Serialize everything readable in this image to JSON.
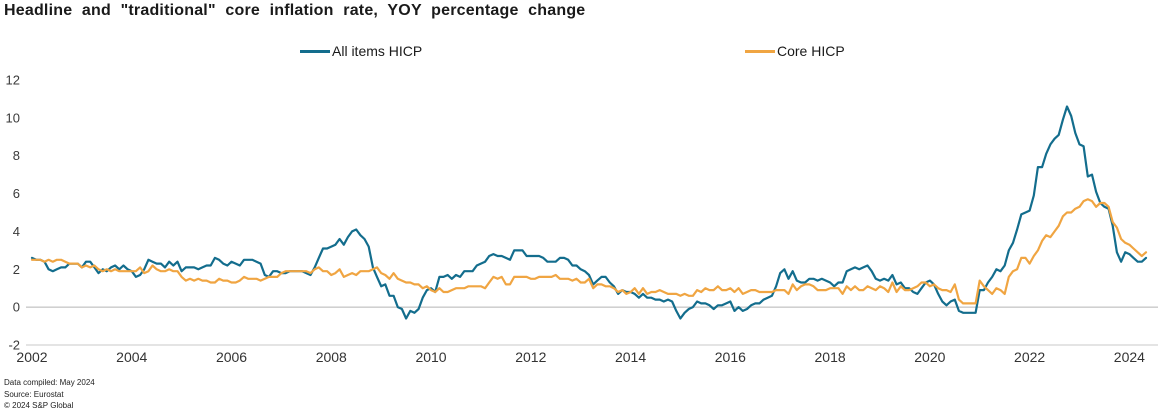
{
  "chart_data": {
    "type": "line",
    "title": "Headline and \"traditional\" core inflation rate, YOY percentage change",
    "x_start": 2002,
    "x_interval": "monthly",
    "x_end_label": "May 2024",
    "x_ticks": [
      2002,
      2004,
      2006,
      2008,
      2010,
      2012,
      2014,
      2016,
      2018,
      2020,
      2022,
      2024
    ],
    "y_ticks": [
      -2,
      0,
      2,
      4,
      6,
      8,
      10,
      12
    ],
    "ylim": [
      -2,
      12
    ],
    "grid": "zero-line-and-baseline-only",
    "legend_position": "top",
    "series": [
      {
        "name": "All items HICP",
        "color": "#136d8d",
        "values": [
          2.6,
          2.5,
          2.5,
          2.4,
          2.0,
          1.9,
          2.0,
          2.1,
          2.1,
          2.3,
          2.3,
          2.3,
          2.1,
          2.4,
          2.4,
          2.1,
          1.8,
          2.0,
          1.9,
          2.1,
          2.2,
          2.0,
          2.2,
          2.0,
          1.9,
          1.6,
          1.7,
          2.0,
          2.5,
          2.4,
          2.3,
          2.3,
          2.1,
          2.4,
          2.2,
          2.4,
          1.9,
          2.1,
          2.1,
          2.1,
          2.0,
          2.1,
          2.2,
          2.2,
          2.6,
          2.5,
          2.3,
          2.2,
          2.4,
          2.3,
          2.2,
          2.5,
          2.5,
          2.5,
          2.4,
          2.3,
          1.7,
          1.6,
          1.9,
          1.9,
          1.8,
          1.8,
          1.9,
          1.9,
          1.9,
          1.9,
          1.8,
          1.7,
          2.1,
          2.6,
          3.1,
          3.1,
          3.2,
          3.3,
          3.6,
          3.3,
          3.7,
          4.0,
          4.1,
          3.8,
          3.6,
          3.2,
          2.1,
          1.6,
          1.1,
          1.2,
          0.6,
          0.6,
          0.0,
          -0.1,
          -0.6,
          -0.2,
          -0.3,
          -0.1,
          0.5,
          0.9,
          1.0,
          0.8,
          1.6,
          1.6,
          1.7,
          1.5,
          1.7,
          1.6,
          1.9,
          1.9,
          1.9,
          2.2,
          2.3,
          2.4,
          2.7,
          2.8,
          2.7,
          2.7,
          2.6,
          2.5,
          3.0,
          3.0,
          3.0,
          2.7,
          2.7,
          2.7,
          2.7,
          2.6,
          2.4,
          2.4,
          2.4,
          2.6,
          2.6,
          2.5,
          2.2,
          2.2,
          2.0,
          1.9,
          1.7,
          1.2,
          1.4,
          1.6,
          1.6,
          1.3,
          1.1,
          0.7,
          0.9,
          0.8,
          0.8,
          0.7,
          0.5,
          0.7,
          0.5,
          0.5,
          0.4,
          0.4,
          0.3,
          0.4,
          0.3,
          -0.2,
          -0.6,
          -0.3,
          -0.1,
          0.0,
          0.3,
          0.2,
          0.2,
          0.1,
          -0.1,
          0.1,
          0.1,
          0.2,
          0.3,
          -0.2,
          0.0,
          -0.2,
          -0.1,
          0.1,
          0.2,
          0.2,
          0.4,
          0.5,
          0.6,
          1.1,
          1.8,
          2.0,
          1.5,
          1.9,
          1.4,
          1.3,
          1.3,
          1.5,
          1.5,
          1.4,
          1.5,
          1.4,
          1.3,
          1.1,
          1.3,
          1.3,
          1.9,
          2.0,
          2.1,
          2.0,
          2.1,
          2.2,
          1.9,
          1.5,
          1.4,
          1.5,
          1.4,
          1.7,
          1.2,
          1.3,
          1.0,
          1.0,
          0.8,
          0.7,
          1.0,
          1.3,
          1.4,
          1.2,
          0.7,
          0.3,
          0.1,
          0.3,
          0.4,
          -0.2,
          -0.3,
          -0.3,
          -0.3,
          -0.3,
          0.9,
          0.9,
          1.3,
          1.6,
          2.0,
          1.9,
          2.2,
          3.0,
          3.4,
          4.1,
          4.9,
          5.0,
          5.1,
          5.9,
          7.4,
          7.4,
          8.1,
          8.6,
          8.9,
          9.1,
          9.9,
          10.6,
          10.1,
          9.2,
          8.6,
          8.5,
          6.9,
          7.0,
          6.1,
          5.5,
          5.3,
          5.2,
          4.3,
          2.9,
          2.4,
          2.9,
          2.8,
          2.6,
          2.4,
          2.4,
          2.6
        ]
      },
      {
        "name": "Core HICP",
        "color": "#f0a542",
        "values": [
          2.5,
          2.5,
          2.5,
          2.4,
          2.5,
          2.4,
          2.5,
          2.5,
          2.4,
          2.3,
          2.3,
          2.3,
          2.1,
          2.2,
          2.1,
          2.2,
          2.0,
          1.9,
          2.0,
          1.9,
          2.0,
          1.9,
          1.9,
          1.9,
          1.9,
          1.9,
          2.1,
          1.8,
          1.9,
          2.2,
          2.0,
          1.9,
          1.9,
          2.0,
          1.9,
          1.9,
          1.6,
          1.4,
          1.5,
          1.4,
          1.5,
          1.4,
          1.4,
          1.3,
          1.3,
          1.5,
          1.4,
          1.4,
          1.3,
          1.3,
          1.4,
          1.6,
          1.5,
          1.5,
          1.5,
          1.4,
          1.5,
          1.6,
          1.6,
          1.6,
          1.8,
          1.9,
          1.9,
          1.9,
          1.9,
          1.9,
          1.9,
          1.8,
          2.0,
          2.1,
          1.9,
          1.9,
          1.7,
          1.8,
          2.0,
          1.6,
          1.7,
          1.8,
          1.7,
          1.9,
          1.9,
          1.9,
          2.0,
          2.1,
          1.8,
          1.7,
          1.5,
          1.8,
          1.5,
          1.4,
          1.3,
          1.3,
          1.2,
          1.2,
          1.0,
          1.1,
          0.9,
          0.8,
          1.0,
          0.8,
          0.8,
          0.9,
          1.0,
          1.0,
          1.0,
          1.1,
          1.1,
          1.1,
          1.1,
          1.0,
          1.3,
          1.6,
          1.5,
          1.6,
          1.2,
          1.2,
          1.6,
          1.6,
          1.6,
          1.6,
          1.5,
          1.5,
          1.6,
          1.6,
          1.6,
          1.6,
          1.7,
          1.5,
          1.5,
          1.5,
          1.4,
          1.5,
          1.3,
          1.3,
          1.5,
          1.0,
          1.2,
          1.2,
          1.1,
          1.1,
          1.0,
          0.8,
          0.9,
          0.7,
          0.8,
          1.0,
          0.7,
          1.0,
          0.7,
          0.8,
          0.8,
          0.9,
          0.8,
          0.7,
          0.7,
          0.7,
          0.6,
          0.7,
          0.6,
          0.6,
          0.9,
          0.8,
          1.0,
          0.9,
          0.9,
          1.1,
          0.9,
          0.9,
          1.0,
          0.8,
          1.0,
          0.7,
          0.8,
          0.9,
          0.9,
          0.8,
          0.8,
          0.8,
          0.8,
          0.9,
          0.9,
          0.9,
          0.7,
          1.2,
          0.9,
          1.1,
          1.2,
          1.2,
          1.1,
          0.9,
          0.9,
          0.9,
          1.0,
          1.0,
          1.0,
          0.7,
          1.1,
          0.9,
          1.1,
          0.9,
          0.9,
          1.1,
          1.0,
          0.9,
          1.1,
          1.0,
          0.8,
          1.3,
          0.8,
          1.1,
          0.9,
          0.9,
          1.0,
          1.1,
          1.3,
          1.3,
          1.1,
          1.2,
          1.0,
          0.9,
          0.9,
          0.8,
          1.2,
          0.4,
          0.2,
          0.2,
          0.2,
          0.2,
          1.4,
          1.1,
          0.9,
          0.7,
          1.0,
          0.9,
          0.7,
          1.6,
          1.9,
          2.0,
          2.6,
          2.6,
          2.3,
          2.7,
          3.0,
          3.5,
          3.8,
          3.7,
          4.0,
          4.3,
          4.8,
          5.0,
          5.0,
          5.2,
          5.3,
          5.6,
          5.7,
          5.6,
          5.3,
          5.5,
          5.5,
          5.3,
          4.5,
          4.2,
          3.6,
          3.4,
          3.3,
          3.1,
          2.9,
          2.7,
          2.9
        ]
      }
    ]
  },
  "footer": {
    "compiled": "Data compiled: May 2024",
    "source": "Source: Eurostat",
    "copyright": "© 2024 S&P Global"
  },
  "colors": {
    "headline_line": "#136d8d",
    "core_line": "#f0a542",
    "zero_line": "#b4b4b4",
    "baseline": "#c8c8c8",
    "title_text": "#1a1a1a"
  }
}
